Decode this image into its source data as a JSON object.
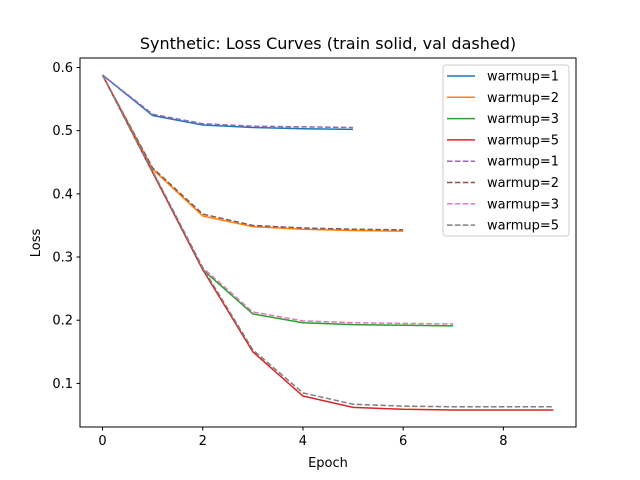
{
  "chart_data": {
    "type": "line",
    "title": "Synthetic: Loss Curves (train solid, val dashed)",
    "xlabel": "Epoch",
    "ylabel": "Loss",
    "xlim": [
      -0.45,
      9.45
    ],
    "ylim": [
      0.031,
      0.615
    ],
    "xticks": [
      0,
      2,
      4,
      6,
      8
    ],
    "yticks": [
      0.1,
      0.2,
      0.3,
      0.4,
      0.5,
      0.6
    ],
    "ytick_labels": [
      "0.1",
      "0.2",
      "0.3",
      "0.4",
      "0.5",
      "0.6"
    ],
    "grid": false,
    "legend_position": "top-right",
    "series": [
      {
        "name": "warmup=1",
        "style": "solid",
        "color": "#1f77b4",
        "x": [
          0,
          1,
          2,
          3,
          4,
          5
        ],
        "y": [
          0.588,
          0.524,
          0.509,
          0.505,
          0.503,
          0.502
        ]
      },
      {
        "name": "warmup=2",
        "style": "solid",
        "color": "#ff7f0e",
        "x": [
          0,
          1,
          2,
          3,
          4,
          5,
          6
        ],
        "y": [
          0.588,
          0.439,
          0.365,
          0.348,
          0.344,
          0.342,
          0.341
        ]
      },
      {
        "name": "warmup=3",
        "style": "solid",
        "color": "#2ca02c",
        "x": [
          0,
          1,
          2,
          3,
          4,
          5,
          6,
          7
        ],
        "y": [
          0.588,
          0.434,
          0.28,
          0.21,
          0.196,
          0.193,
          0.192,
          0.191
        ]
      },
      {
        "name": "warmup=5",
        "style": "solid",
        "color": "#d62728",
        "x": [
          0,
          1,
          2,
          3,
          4,
          5,
          6,
          7,
          8,
          9
        ],
        "y": [
          0.588,
          0.434,
          0.28,
          0.15,
          0.08,
          0.062,
          0.059,
          0.058,
          0.058,
          0.058
        ]
      },
      {
        "name": "warmup=1",
        "style": "dashed",
        "color": "#9467bd",
        "x": [
          0,
          1,
          2,
          3,
          4,
          5
        ],
        "y": [
          0.588,
          0.526,
          0.511,
          0.507,
          0.506,
          0.505
        ]
      },
      {
        "name": "warmup=2",
        "style": "dashed",
        "color": "#8c564b",
        "x": [
          0,
          1,
          2,
          3,
          4,
          5,
          6
        ],
        "y": [
          0.588,
          0.441,
          0.368,
          0.35,
          0.346,
          0.344,
          0.343
        ]
      },
      {
        "name": "warmup=3",
        "style": "dashed",
        "color": "#e377c2",
        "x": [
          0,
          1,
          2,
          3,
          4,
          5,
          6,
          7
        ],
        "y": [
          0.588,
          0.436,
          0.283,
          0.213,
          0.199,
          0.196,
          0.195,
          0.194
        ]
      },
      {
        "name": "warmup=5",
        "style": "dashed",
        "color": "#7f7f7f",
        "x": [
          0,
          1,
          2,
          3,
          4,
          5,
          6,
          7,
          8,
          9
        ],
        "y": [
          0.588,
          0.436,
          0.283,
          0.153,
          0.085,
          0.067,
          0.064,
          0.063,
          0.063,
          0.063
        ]
      }
    ]
  }
}
